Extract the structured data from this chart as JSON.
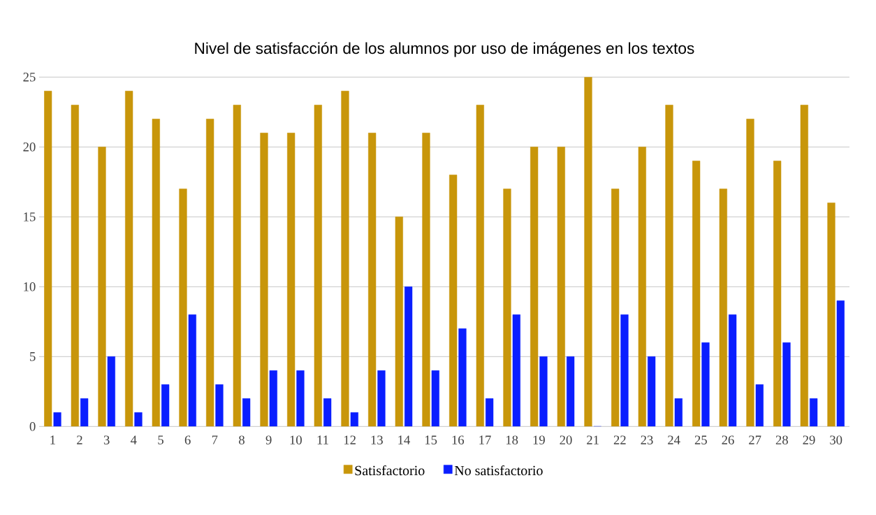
{
  "chart_data": {
    "type": "bar",
    "title": "Nivel de satisfacción de los alumnos por uso de imágenes en los textos",
    "categories": [
      "1",
      "2",
      "3",
      "4",
      "5",
      "6",
      "7",
      "8",
      "9",
      "10",
      "11",
      "12",
      "13",
      "14",
      "15",
      "16",
      "17",
      "18",
      "19",
      "20",
      "21",
      "22",
      "23",
      "24",
      "25",
      "26",
      "27",
      "28",
      "29",
      "30"
    ],
    "series": [
      {
        "name": "Satisfactorio",
        "color": "#c8960a",
        "values": [
          24,
          23,
          20,
          24,
          22,
          17,
          22,
          23,
          21,
          21,
          23,
          24,
          21,
          15,
          21,
          18,
          23,
          17,
          20,
          20,
          25,
          17,
          20,
          23,
          19,
          17,
          22,
          19,
          23,
          16
        ]
      },
      {
        "name": "No satisfactorio",
        "color": "#0a1eff",
        "values": [
          1,
          2,
          5,
          1,
          3,
          8,
          3,
          2,
          4,
          4,
          2,
          1,
          4,
          10,
          4,
          7,
          2,
          8,
          5,
          5,
          0,
          8,
          5,
          2,
          6,
          8,
          3,
          6,
          2,
          9
        ]
      }
    ],
    "ylim": [
      0,
      25
    ],
    "yticks": [
      0,
      5,
      10,
      15,
      20,
      25
    ],
    "grid": "y",
    "legend": "bottom"
  }
}
